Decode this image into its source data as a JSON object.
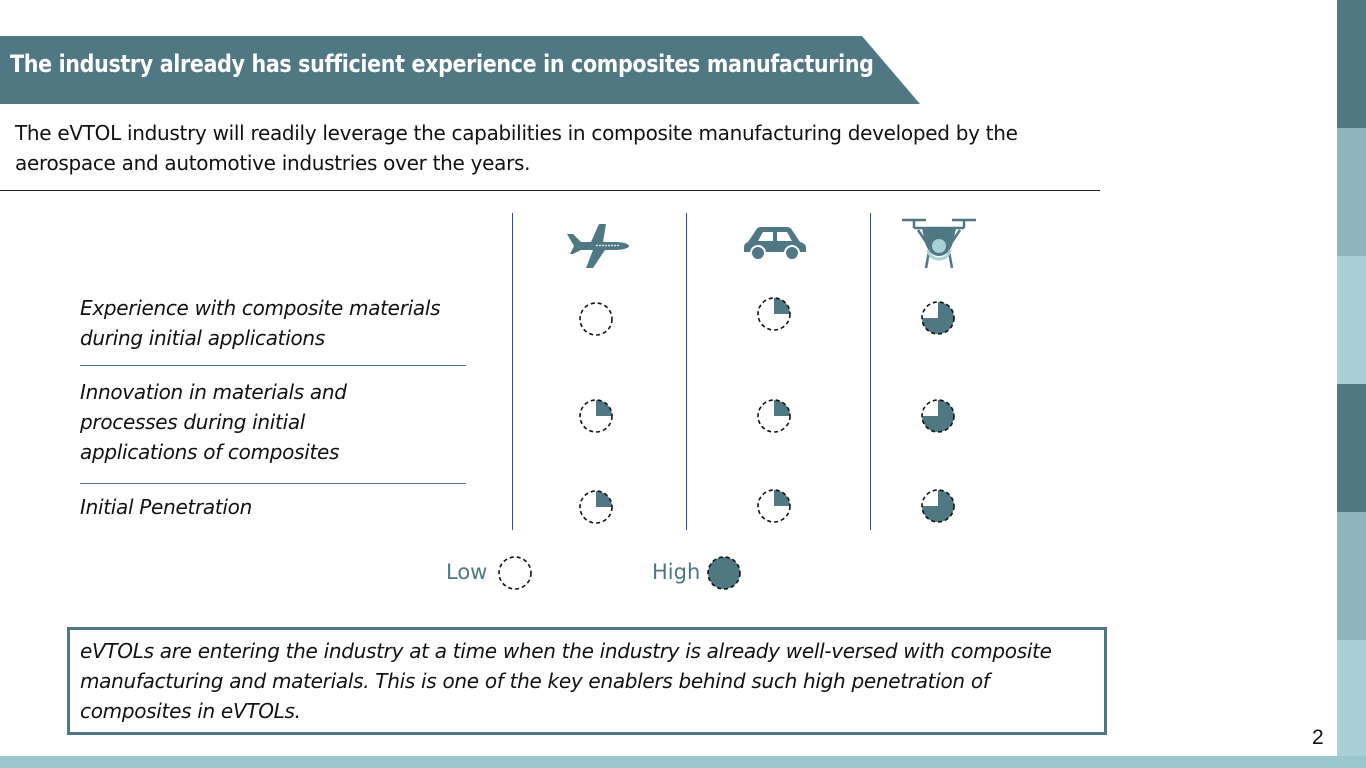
{
  "slide": {
    "title": "The industry already has sufficient experience in composites manufacturing",
    "intro": "The eVTOL industry will readily leverage the capabilities in composite manufacturing developed by the aerospace and automotive industries over the years.",
    "page_number": "2",
    "colors": {
      "accent": "#4f7884",
      "bottom_bar": "#9dc7ce",
      "side_bar_segments": [
        "#4f7884",
        "#8fb6bc",
        "#a9d0d5",
        "#4f7884",
        "#8fb6bc",
        "#a9d0d5"
      ]
    }
  },
  "matrix": {
    "columns": [
      {
        "icon": "airplane-icon"
      },
      {
        "icon": "car-icon"
      },
      {
        "icon": "evtol-drone-icon"
      }
    ],
    "rows": [
      {
        "label": "Experience with composite materials during initial applications",
        "scores": [
          0,
          0.25,
          0.75
        ]
      },
      {
        "label": "Innovation in materials and processes during initial applications of composites",
        "scores": [
          0.25,
          0.25,
          0.75
        ]
      },
      {
        "label": "Initial Penetration",
        "scores": [
          0.25,
          0.25,
          0.75
        ]
      }
    ]
  },
  "legend": {
    "low_label": "Low",
    "high_label": "High"
  },
  "note": "eVTOLs are entering the industry at a time when the industry is already well-versed with composite manufacturing and materials. This is one of the key enablers behind such high penetration of composites in eVTOLs."
}
